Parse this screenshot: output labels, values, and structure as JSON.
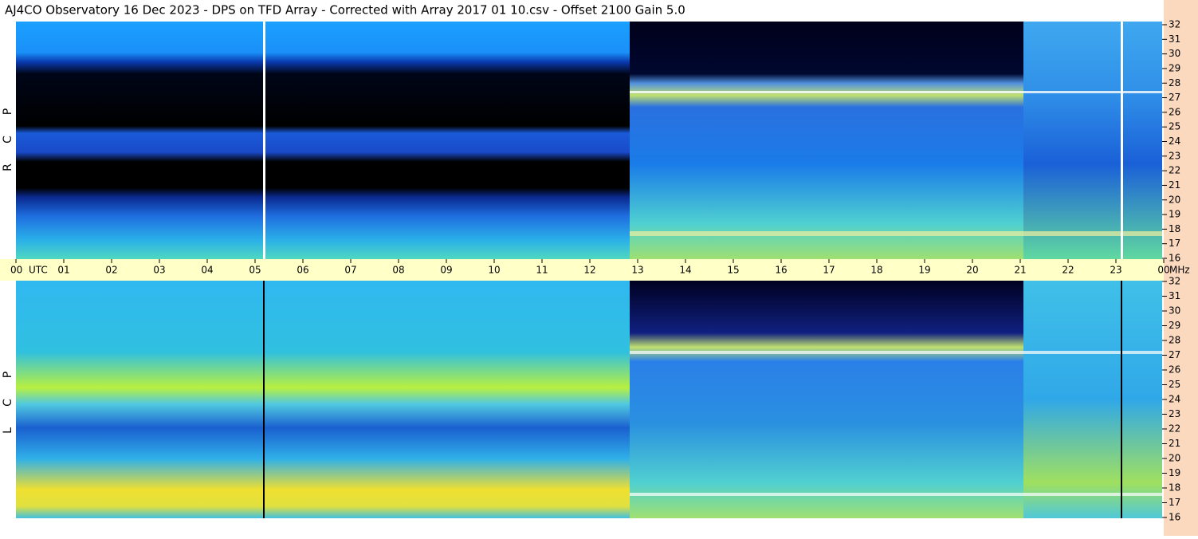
{
  "title": "AJ4CO Observatory  16 Dec 2023  -  DPS on TFD Array  -  Corrected with Array 2017 01 10.csv  -  Offset 2100  Gain 5.0",
  "time_axis": {
    "hours": [
      "00",
      "01",
      "02",
      "03",
      "04",
      "05",
      "06",
      "07",
      "08",
      "09",
      "10",
      "11",
      "12",
      "13",
      "14",
      "15",
      "16",
      "17",
      "18",
      "19",
      "20",
      "21",
      "22",
      "23",
      "00"
    ],
    "left_unit": "UTC",
    "right_unit": "MHz"
  },
  "panels": [
    {
      "letters": [
        "R",
        "C",
        "P"
      ],
      "freq_ticks": [
        "16",
        "17",
        "18",
        "19",
        "20",
        "21",
        "22",
        "23",
        "24",
        "25",
        "26",
        "27",
        "28",
        "29",
        "30",
        "31",
        "32"
      ]
    },
    {
      "letters": [
        "L",
        "C",
        "P"
      ],
      "freq_ticks": [
        "16",
        "17",
        "18",
        "19",
        "20",
        "21",
        "22",
        "23",
        "24",
        "25",
        "26",
        "27",
        "28",
        "29",
        "30",
        "31",
        "32"
      ]
    }
  ]
}
